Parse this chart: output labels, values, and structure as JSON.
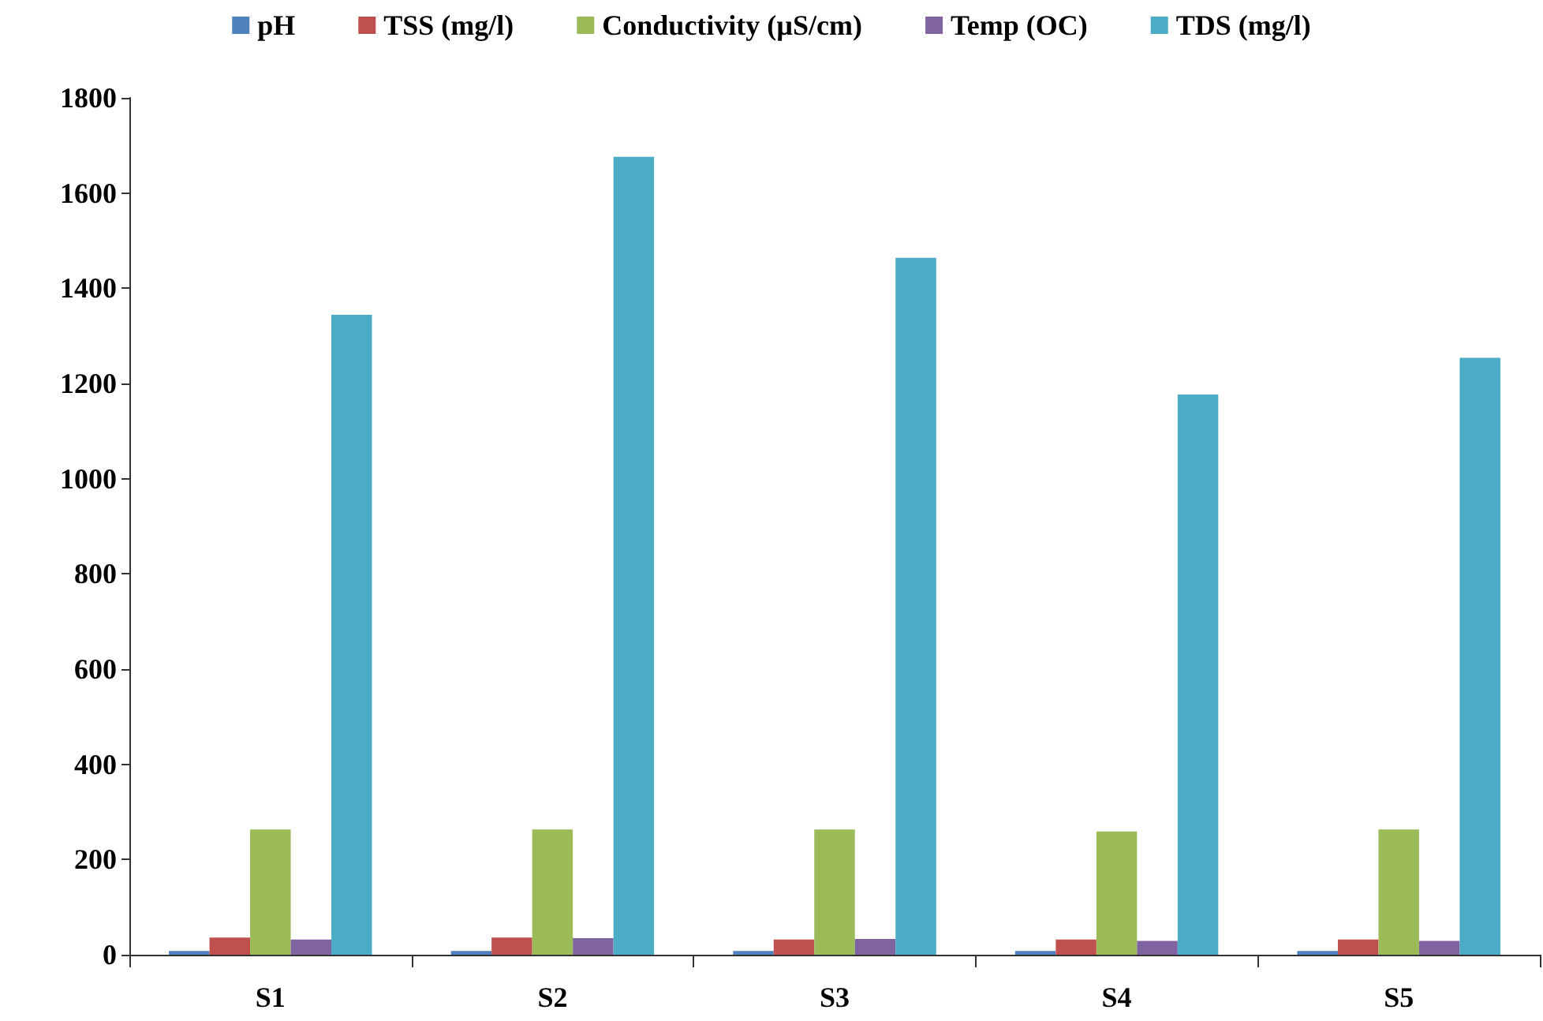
{
  "chart_data": {
    "type": "bar",
    "categories": [
      "S1",
      "S2",
      "S3",
      "S4",
      "S5"
    ],
    "series": [
      {
        "name": "pH",
        "color": "#4f81bd",
        "values": [
          8,
          8,
          8,
          8,
          8
        ]
      },
      {
        "name": "TSS (mg/l)",
        "color": "#c0504d",
        "values": [
          36,
          36,
          32,
          32,
          32
        ]
      },
      {
        "name": "Conductivity (µS/cm)",
        "color": "#9bbb59",
        "values": [
          263,
          263,
          263,
          259,
          263
        ]
      },
      {
        "name": "Temp (OC)",
        "color": "#8064a2",
        "values": [
          32,
          35,
          33,
          29,
          29
        ]
      },
      {
        "name": "TDS (mg/l)",
        "color": "#4bacc6",
        "values": [
          1344,
          1676,
          1464,
          1177,
          1254
        ]
      }
    ],
    "ylim": [
      0,
      1800
    ],
    "yticks": [
      0,
      200,
      400,
      600,
      800,
      1000,
      1200,
      1400,
      1600,
      1800
    ],
    "grid": false,
    "legend": "top"
  }
}
